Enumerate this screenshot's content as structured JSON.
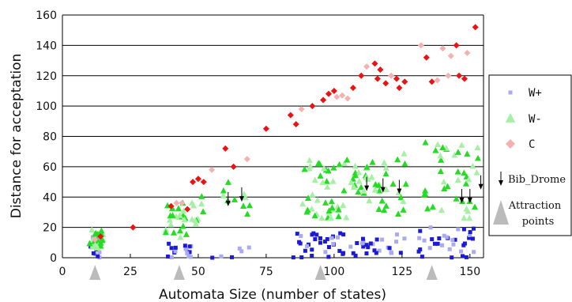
{
  "chart_data": {
    "type": "scatter",
    "xlabel": "Automata Size (number of states)",
    "ylabel": "Distance for acceptation",
    "xlim": [
      0,
      155
    ],
    "ylim": [
      0,
      160
    ],
    "xticks": [
      "0",
      "25",
      "50",
      "75",
      "100",
      "125",
      "150"
    ],
    "yticks": [
      "0",
      "20",
      "40",
      "60",
      "80",
      "100",
      "120",
      "140",
      "160"
    ],
    "grid": "horizontal",
    "legend_position": "right",
    "colors": {
      "w_plus_dark": "#1a1ad8",
      "w_plus_light": "#a8aaf2",
      "w_minus": "#22dd22",
      "w_minus_light": "#a6f0a6",
      "c_dark": "#ee1111",
      "c_light": "#f5b0b0",
      "arrow": "#000000",
      "attraction": "#bbbbbb"
    },
    "legend": [
      {
        "label": "W+",
        "marker": "square",
        "color": "#a8aaf2"
      },
      {
        "label": "W-",
        "marker": "triangle",
        "color": "#a6f0a6"
      },
      {
        "label": "C",
        "marker": "diamond",
        "color": "#f5b0b0"
      },
      {
        "label": "Bib_Drome",
        "marker": "arrow",
        "color": "#000000"
      },
      {
        "label": "Attraction points",
        "marker": "big-triangle",
        "color": "#bbbbbb"
      }
    ],
    "attraction_points": [
      12,
      43,
      95,
      136
    ],
    "series": [
      {
        "name": "W+",
        "clusters": [
          {
            "x": [
              10,
              14
            ],
            "y": [
              0,
              14
            ],
            "n": 18
          },
          {
            "x": [
              38,
              48
            ],
            "y": [
              0,
              10
            ],
            "n": 16
          },
          {
            "x": [
              55,
              70
            ],
            "y": [
              0,
              8
            ],
            "n": 6
          },
          {
            "x": [
              85,
              110
            ],
            "y": [
              0,
              18
            ],
            "n": 36
          },
          {
            "x": [
              110,
              127
            ],
            "y": [
              0,
              16
            ],
            "n": 22
          },
          {
            "x": [
              130,
              152
            ],
            "y": [
              0,
              20
            ],
            "n": 34
          }
        ]
      },
      {
        "name": "W-",
        "clusters": [
          {
            "x": [
              10,
              15
            ],
            "y": [
              5,
              20
            ],
            "n": 26
          },
          {
            "x": [
              38,
              46
            ],
            "y": [
              10,
              36
            ],
            "n": 22
          },
          {
            "x": [
              47,
              53
            ],
            "y": [
              22,
              48
            ],
            "n": 10
          },
          {
            "x": [
              55,
              72
            ],
            "y": [
              28,
              50
            ],
            "n": 10
          },
          {
            "x": [
              88,
              98
            ],
            "y": [
              25,
              66
            ],
            "n": 26
          },
          {
            "x": [
              98,
              112
            ],
            "y": [
              25,
              68
            ],
            "n": 34
          },
          {
            "x": [
              112,
              127
            ],
            "y": [
              28,
              70
            ],
            "n": 28
          },
          {
            "x": [
              133,
              153
            ],
            "y": [
              25,
              78
            ],
            "n": 40
          }
        ]
      },
      {
        "name": "C",
        "points": [
          [
            12,
            12
          ],
          [
            14,
            14
          ],
          [
            26,
            20
          ],
          [
            40,
            34
          ],
          [
            42,
            36
          ],
          [
            44,
            36
          ],
          [
            46,
            32
          ],
          [
            48,
            50
          ],
          [
            50,
            52
          ],
          [
            52,
            50
          ],
          [
            55,
            58
          ],
          [
            60,
            72
          ],
          [
            63,
            60
          ],
          [
            68,
            65
          ],
          [
            75,
            85
          ],
          [
            84,
            94
          ],
          [
            86,
            88
          ],
          [
            88,
            98
          ],
          [
            92,
            100
          ],
          [
            96,
            104
          ],
          [
            98,
            108
          ],
          [
            100,
            110
          ],
          [
            101,
            106
          ],
          [
            103,
            107
          ],
          [
            105,
            105
          ],
          [
            107,
            112
          ],
          [
            110,
            120
          ],
          [
            112,
            126
          ],
          [
            115,
            128
          ],
          [
            116,
            118
          ],
          [
            117,
            124
          ],
          [
            119,
            115
          ],
          [
            121,
            120
          ],
          [
            123,
            118
          ],
          [
            124,
            112
          ],
          [
            126,
            116
          ],
          [
            132,
            140
          ],
          [
            134,
            132
          ],
          [
            136,
            116
          ],
          [
            138,
            117
          ],
          [
            140,
            138
          ],
          [
            142,
            120
          ],
          [
            143,
            133
          ],
          [
            145,
            140
          ],
          [
            146,
            120
          ],
          [
            148,
            118
          ],
          [
            149,
            135
          ],
          [
            152,
            152
          ]
        ]
      },
      {
        "name": "Bib_Drome",
        "points": [
          [
            61,
            35
          ],
          [
            66,
            38
          ],
          [
            112,
            45
          ],
          [
            118,
            44
          ],
          [
            124,
            43
          ],
          [
            147,
            37
          ],
          [
            150,
            37
          ],
          [
            154,
            46
          ]
        ]
      }
    ]
  }
}
